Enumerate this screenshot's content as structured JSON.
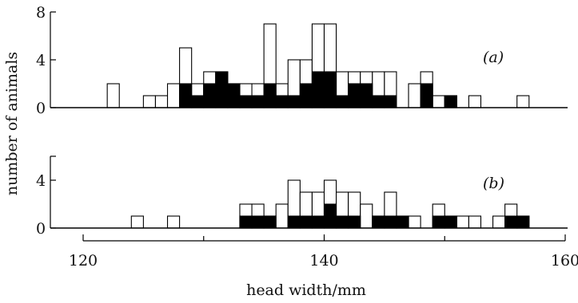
{
  "chart_data": {
    "type": "bar",
    "x_unit_width": 1,
    "xlabel": "head width/mm",
    "ylabel": "number of animals",
    "x_axis": {
      "min": 120,
      "max": 160,
      "ticks": [
        120,
        140,
        160
      ],
      "minor_step": 10
    },
    "panels": [
      {
        "label": "(a)",
        "ylim": [
          0,
          8
        ],
        "yticks": [
          0,
          4,
          8
        ],
        "series": [
          {
            "role": "total",
            "fill": "#ffffff",
            "bins": [
              [
                122,
                2
              ],
              [
                125,
                1
              ],
              [
                126,
                1
              ],
              [
                127,
                2
              ],
              [
                128,
                5
              ],
              [
                129,
                2
              ],
              [
                130,
                3
              ],
              [
                131,
                3
              ],
              [
                132,
                2
              ],
              [
                133,
                2
              ],
              [
                134,
                2
              ],
              [
                135,
                7
              ],
              [
                136,
                2
              ],
              [
                137,
                4
              ],
              [
                138,
                4
              ],
              [
                139,
                7
              ],
              [
                140,
                7
              ],
              [
                141,
                3
              ],
              [
                142,
                3
              ],
              [
                143,
                3
              ],
              [
                144,
                3
              ],
              [
                145,
                3
              ],
              [
                147,
                2
              ],
              [
                148,
                3
              ],
              [
                149,
                1
              ],
              [
                150,
                1
              ],
              [
                152,
                1
              ],
              [
                156,
                1
              ]
            ]
          },
          {
            "role": "subset",
            "fill": "#000000",
            "bins": [
              [
                128,
                2
              ],
              [
                129,
                1
              ],
              [
                130,
                2
              ],
              [
                131,
                3
              ],
              [
                132,
                2
              ],
              [
                133,
                1
              ],
              [
                134,
                1
              ],
              [
                135,
                2
              ],
              [
                136,
                1
              ],
              [
                137,
                1
              ],
              [
                138,
                2
              ],
              [
                139,
                3
              ],
              [
                140,
                3
              ],
              [
                141,
                1
              ],
              [
                142,
                2
              ],
              [
                143,
                2
              ],
              [
                144,
                1
              ],
              [
                145,
                1
              ],
              [
                148,
                2
              ],
              [
                150,
                1
              ]
            ]
          }
        ]
      },
      {
        "label": "(b)",
        "ylim": [
          0,
          6
        ],
        "yticks": [
          0,
          4
        ],
        "series": [
          {
            "role": "total",
            "fill": "#ffffff",
            "bins": [
              [
                124,
                1
              ],
              [
                127,
                1
              ],
              [
                133,
                2
              ],
              [
                134,
                2
              ],
              [
                135,
                1
              ],
              [
                136,
                2
              ],
              [
                137,
                4
              ],
              [
                138,
                3
              ],
              [
                139,
                3
              ],
              [
                140,
                4
              ],
              [
                141,
                3
              ],
              [
                142,
                3
              ],
              [
                143,
                2
              ],
              [
                144,
                1
              ],
              [
                145,
                3
              ],
              [
                146,
                1
              ],
              [
                147,
                1
              ],
              [
                149,
                2
              ],
              [
                150,
                1
              ],
              [
                151,
                1
              ],
              [
                152,
                1
              ],
              [
                154,
                1
              ],
              [
                155,
                2
              ],
              [
                156,
                1
              ]
            ]
          },
          {
            "role": "subset",
            "fill": "#000000",
            "bins": [
              [
                133,
                1
              ],
              [
                134,
                1
              ],
              [
                135,
                1
              ],
              [
                137,
                1
              ],
              [
                138,
                1
              ],
              [
                139,
                1
              ],
              [
                140,
                2
              ],
              [
                141,
                1
              ],
              [
                142,
                1
              ],
              [
                144,
                1
              ],
              [
                145,
                1
              ],
              [
                146,
                1
              ],
              [
                149,
                1
              ],
              [
                150,
                1
              ],
              [
                155,
                1
              ],
              [
                156,
                1
              ]
            ]
          }
        ]
      }
    ]
  }
}
